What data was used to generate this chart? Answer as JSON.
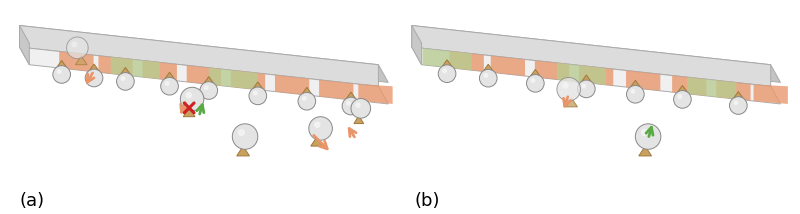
{
  "fig_width": 8.0,
  "fig_height": 2.14,
  "dpi": 100,
  "bg_color": "#ffffff",
  "label_a": "(a)",
  "label_b": "(b)",
  "label_fontsize": 13,
  "OC": "#e8956a",
  "GC": "#b8cc90",
  "SC": "#e4e4e4",
  "SE": "#888888",
  "TC": "#c8a060",
  "TE": "#a07838",
  "RC": "#cc2222",
  "fiber_front": "#dcdcdc",
  "fiber_top": "#f0f0f0",
  "fiber_bottom": "#c4c4c4",
  "fiber_left": "#c8c8c8",
  "fiber_edge": "#aaaaaa"
}
